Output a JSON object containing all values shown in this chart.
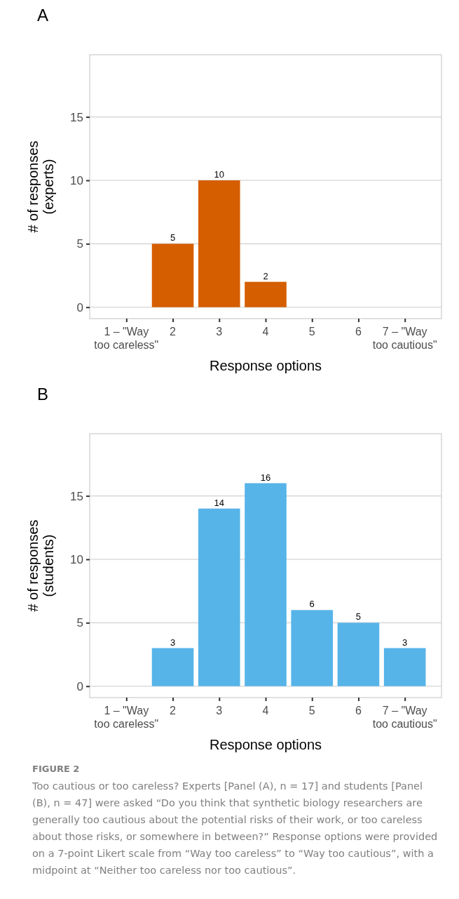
{
  "chart_data": [
    {
      "type": "bar",
      "title": "A",
      "xlabel": "Response options",
      "ylabel": "# of responses\n(experts)",
      "categories": [
        "1 – \"Way\ntoo careless\"",
        "2",
        "3",
        "4",
        "5",
        "6",
        "7 – \"Way\ntoo cautious\""
      ],
      "values": [
        0,
        5,
        10,
        2,
        0,
        0,
        0
      ],
      "value_labels": [
        null,
        "5",
        "10",
        "2",
        null,
        null,
        null
      ],
      "color": "#d55e00",
      "ylim": [
        -0.9,
        19.9
      ],
      "yticks": [
        0,
        5,
        10,
        15
      ],
      "grid": "y"
    },
    {
      "type": "bar",
      "title": "B",
      "xlabel": "Response options",
      "ylabel": "# of responses\n(students)",
      "categories": [
        "1 – \"Way\ntoo careless\"",
        "2",
        "3",
        "4",
        "5",
        "6",
        "7 – \"Way\ntoo cautious\""
      ],
      "values": [
        0,
        3,
        14,
        16,
        6,
        5,
        3
      ],
      "value_labels": [
        null,
        "3",
        "14",
        "16",
        "6",
        "5",
        "3"
      ],
      "color": "#56b4e9",
      "ylim": [
        -0.9,
        19.9
      ],
      "yticks": [
        0,
        5,
        10,
        15
      ],
      "grid": "y",
      "annotations": [
        "FIGURE 2",
        "Too cautious or too careless? Experts [Panel (A), n = 17] and students [Panel (B), n = 47] were asked “Do you think that synthetic biology researchers are generally too cautious about the potential risks of their work, or too careless about those risks, or somewhere in between?” Response options were provided on a 7-point Likert scale from “Way too careless” to “Way too cautious”, with a midpoint at “Neither too careless nor too cautious”."
      ]
    }
  ]
}
